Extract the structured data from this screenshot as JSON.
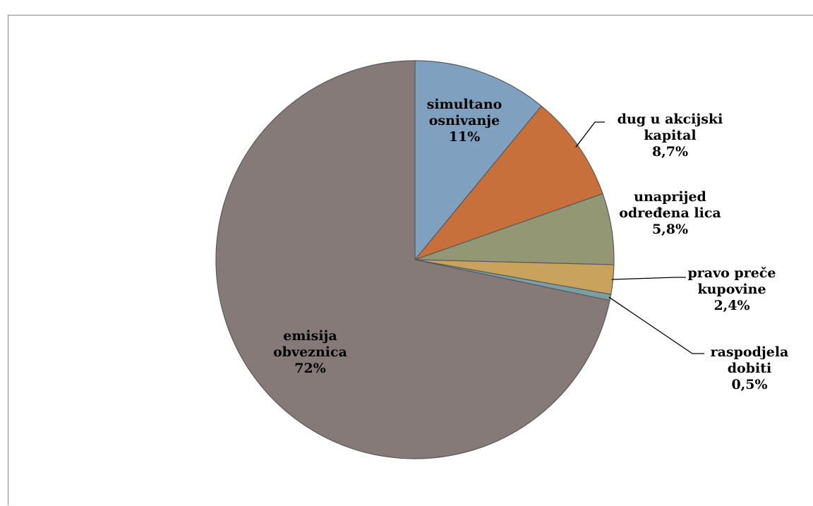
{
  "chart_data": {
    "type": "pie",
    "title": "",
    "start_angle_deg": 0,
    "direction": "clockwise",
    "slices": [
      {
        "label_lines": [
          "simultano",
          "osnivanje"
        ],
        "value": 11,
        "value_label": "11%",
        "color": "#7fa1bf"
      },
      {
        "label_lines": [
          "dug u akcijski",
          "kapital"
        ],
        "value": 8.7,
        "value_label": "8,7%",
        "color": "#c8703b"
      },
      {
        "label_lines": [
          "unaprijed",
          "određena lica"
        ],
        "value": 5.8,
        "value_label": "5,8%",
        "color": "#939774"
      },
      {
        "label_lines": [
          "pravo preče",
          "kupovine"
        ],
        "value": 2.4,
        "value_label": "2,4%",
        "color": "#c9a25e"
      },
      {
        "label_lines": [
          "raspodjela",
          "dobiti"
        ],
        "value": 0.5,
        "value_label": "0,5%",
        "color": "#7a9ea2"
      },
      {
        "label_lines": [
          "emisija",
          "obveznica"
        ],
        "value": 72,
        "value_label": "72%",
        "color": "#857a78"
      }
    ]
  }
}
